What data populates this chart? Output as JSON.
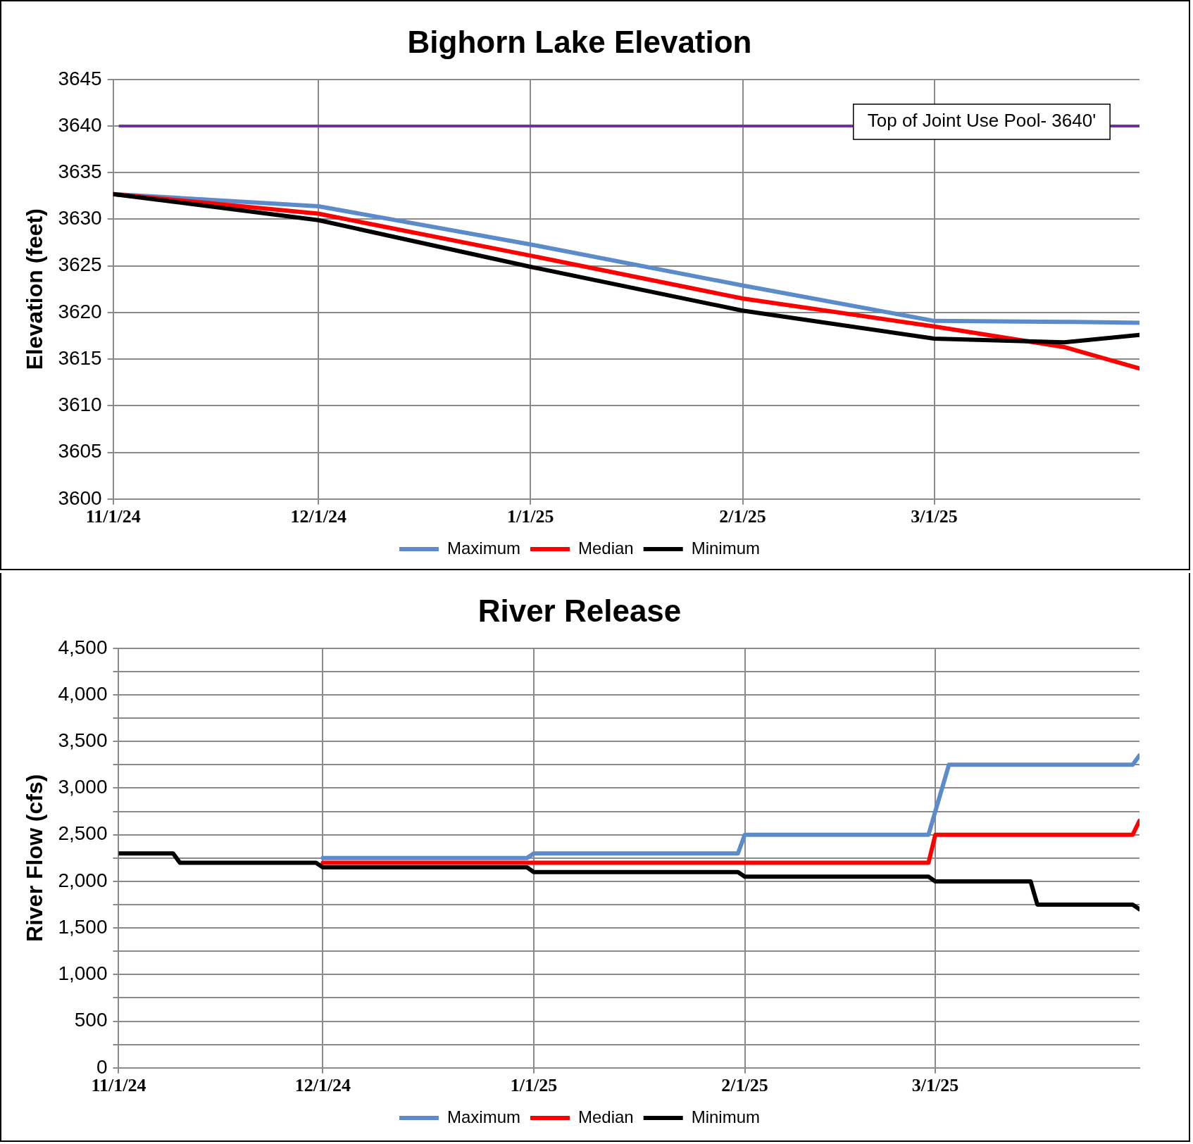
{
  "chart_data": [
    {
      "type": "line",
      "title": "Bighorn Lake Elevation",
      "ylabel": "Elevation (feet)",
      "xlim": [
        "2024-11-01",
        "2025-03-31"
      ],
      "xticks": [
        {
          "value": "2024-11-01",
          "label": "11/1/24"
        },
        {
          "value": "2024-12-01",
          "label": "12/1/24"
        },
        {
          "value": "2025-01-01",
          "label": "1/1/25"
        },
        {
          "value": "2025-02-01",
          "label": "2/1/25"
        },
        {
          "value": "2025-03-01",
          "label": "3/1/25"
        }
      ],
      "ylim": [
        3600,
        3645
      ],
      "yticks": [
        3600,
        3605,
        3610,
        3615,
        3620,
        3625,
        3630,
        3635,
        3640,
        3645
      ],
      "grid": true,
      "legend": "bottom",
      "marker": "none",
      "line_style": "solid",
      "x": [
        "2024-11-01",
        "2024-12-01",
        "2025-01-01",
        "2025-02-01",
        "2025-03-01",
        "2025-03-20",
        "2025-03-31"
      ],
      "series": [
        {
          "name": "Maximum",
          "color": "#5b8bc9",
          "values": [
            3632.7,
            3631.4,
            3627.3,
            3622.9,
            3619.1,
            3619.0,
            3618.9
          ]
        },
        {
          "name": "Median",
          "color": "#ff0000",
          "values": [
            3632.7,
            3630.6,
            3626.1,
            3621.5,
            3618.5,
            3616.3,
            3614.0
          ]
        },
        {
          "name": "Minimum",
          "color": "#000000",
          "values": [
            3632.7,
            3629.9,
            3624.9,
            3620.2,
            3617.2,
            3616.8,
            3617.6
          ]
        }
      ],
      "ref_lines": [
        {
          "axis": "y",
          "value": 3640,
          "label": "Top of Joint Use Pool- 3640'",
          "color": "#7030a0"
        }
      ]
    },
    {
      "type": "line",
      "title": "River Release",
      "ylabel": "River Flow (cfs)",
      "xlim": [
        "2024-11-01",
        "2025-03-31"
      ],
      "xticks": [
        {
          "value": "2024-11-01",
          "label": "11/1/24"
        },
        {
          "value": "2024-12-01",
          "label": "12/1/24"
        },
        {
          "value": "2025-01-01",
          "label": "1/1/25"
        },
        {
          "value": "2025-02-01",
          "label": "2/1/25"
        },
        {
          "value": "2025-03-01",
          "label": "3/1/25"
        }
      ],
      "ylim": [
        0,
        4500
      ],
      "yticks": [
        0,
        {
          "value": 250,
          "label": null
        },
        500,
        {
          "value": 750,
          "label": null
        },
        {
          "value": 1000,
          "label": "1,000"
        },
        {
          "value": 1250,
          "label": null
        },
        {
          "value": 1500,
          "label": "1,500"
        },
        {
          "value": 1750,
          "label": null
        },
        {
          "value": 2000,
          "label": "2,000"
        },
        {
          "value": 2250,
          "label": null
        },
        {
          "value": 2500,
          "label": "2,500"
        },
        {
          "value": 2750,
          "label": null
        },
        {
          "value": 3000,
          "label": "3,000"
        },
        {
          "value": 3250,
          "label": null
        },
        {
          "value": 3500,
          "label": "3,500"
        },
        {
          "value": 3750,
          "label": null
        },
        {
          "value": 4000,
          "label": "4,000"
        },
        {
          "value": 4250,
          "label": null
        },
        {
          "value": 4500,
          "label": "4,500"
        }
      ],
      "grid": true,
      "legend": "bottom",
      "marker": "none",
      "line_style": "solid",
      "series": [
        {
          "name": "Maximum",
          "color": "#5b8bc9",
          "x": [
            "2024-12-01",
            "2024-12-31",
            "2025-01-01",
            "2025-01-31",
            "2025-02-01",
            "2025-02-28",
            "2025-03-03",
            "2025-03-30",
            "2025-03-31"
          ],
          "values": [
            2250,
            2250,
            2300,
            2300,
            2500,
            2500,
            3250,
            3250,
            3350
          ]
        },
        {
          "name": "Median",
          "color": "#ff0000",
          "x": [
            "2024-12-01",
            "2025-02-28",
            "2025-03-01",
            "2025-03-30",
            "2025-03-31"
          ],
          "values": [
            2200,
            2200,
            2500,
            2500,
            2650
          ]
        },
        {
          "name": "Minimum",
          "color": "#000000",
          "x": [
            "2024-11-01",
            "2024-11-09",
            "2024-11-10",
            "2024-11-30",
            "2024-12-01",
            "2024-12-31",
            "2025-01-01",
            "2025-01-31",
            "2025-02-01",
            "2025-02-28",
            "2025-03-01",
            "2025-03-15",
            "2025-03-16",
            "2025-03-30",
            "2025-03-31"
          ],
          "values": [
            2300,
            2300,
            2200,
            2200,
            2150,
            2150,
            2100,
            2100,
            2050,
            2050,
            2000,
            2000,
            1750,
            1750,
            1700
          ]
        }
      ]
    }
  ]
}
